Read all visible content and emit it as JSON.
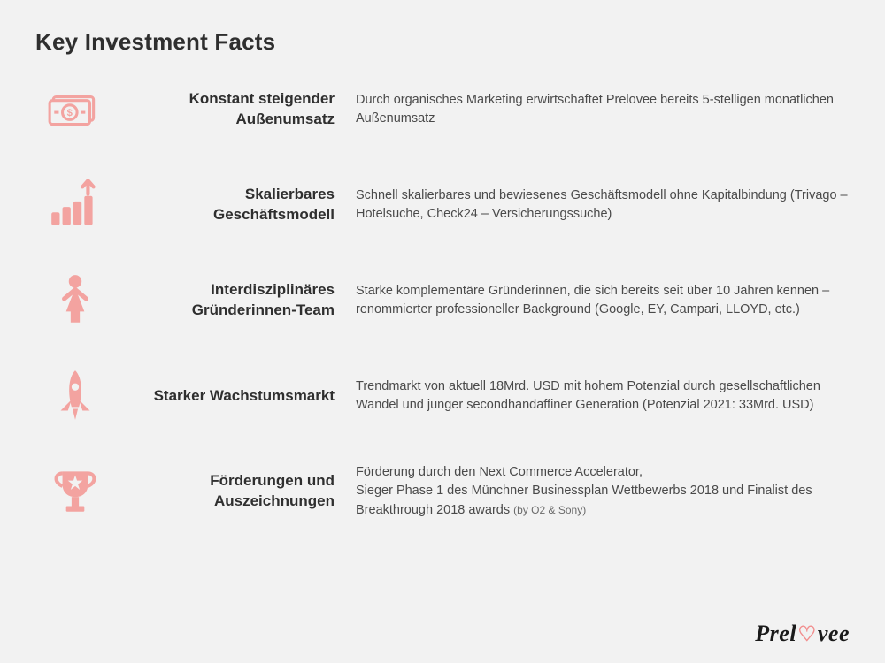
{
  "title": "Key Investment Facts",
  "icon_color": "#f3a3a0",
  "background_color": "#f2f2f2",
  "text_color": "#3a3a3a",
  "facts": [
    {
      "icon": "money-bill-icon",
      "heading": "Konstant steigender Außenumsatz",
      "description": "Durch organisches Marketing erwirtschaftet Prelovee bereits 5-stelligen monatlichen Außenumsatz"
    },
    {
      "icon": "growth-chart-icon",
      "heading": "Skalierbares Geschäftsmodell",
      "description": "Schnell skalierbares und bewiesenes Geschäftsmodell ohne Kapitalbindung (Trivago – Hotelsuche, Check24 – Versicherungssuche)"
    },
    {
      "icon": "female-figure-icon",
      "heading": "Interdisziplinäres Gründerinnen-Team",
      "description": "Starke komplementäre Gründerinnen, die sich bereits seit über 10 Jahren kennen – renommierter professioneller Background (Google, EY, Campari, LLOYD, etc.)"
    },
    {
      "icon": "rocket-icon",
      "heading": "Starker Wachstumsmarkt",
      "description": "Trendmarkt von aktuell 18Mrd. USD mit hohem Potenzial durch gesellschaftlichen Wandel und junger secondhandaffiner Generation (Potenzial 2021: 33Mrd. USD)"
    },
    {
      "icon": "trophy-icon",
      "heading": "Förderungen und Auszeichnungen",
      "description": "Förderung durch den Next Commerce Accelerator,\nSieger Phase 1 des Münchner Businessplan Wettbewerbs 2018 und Finalist des Breakthrough 2018 awards",
      "description_suffix_small": "(by O2 & Sony)"
    }
  ],
  "logo": {
    "prefix": "Prel",
    "heart": "♡",
    "suffix": "vee"
  }
}
